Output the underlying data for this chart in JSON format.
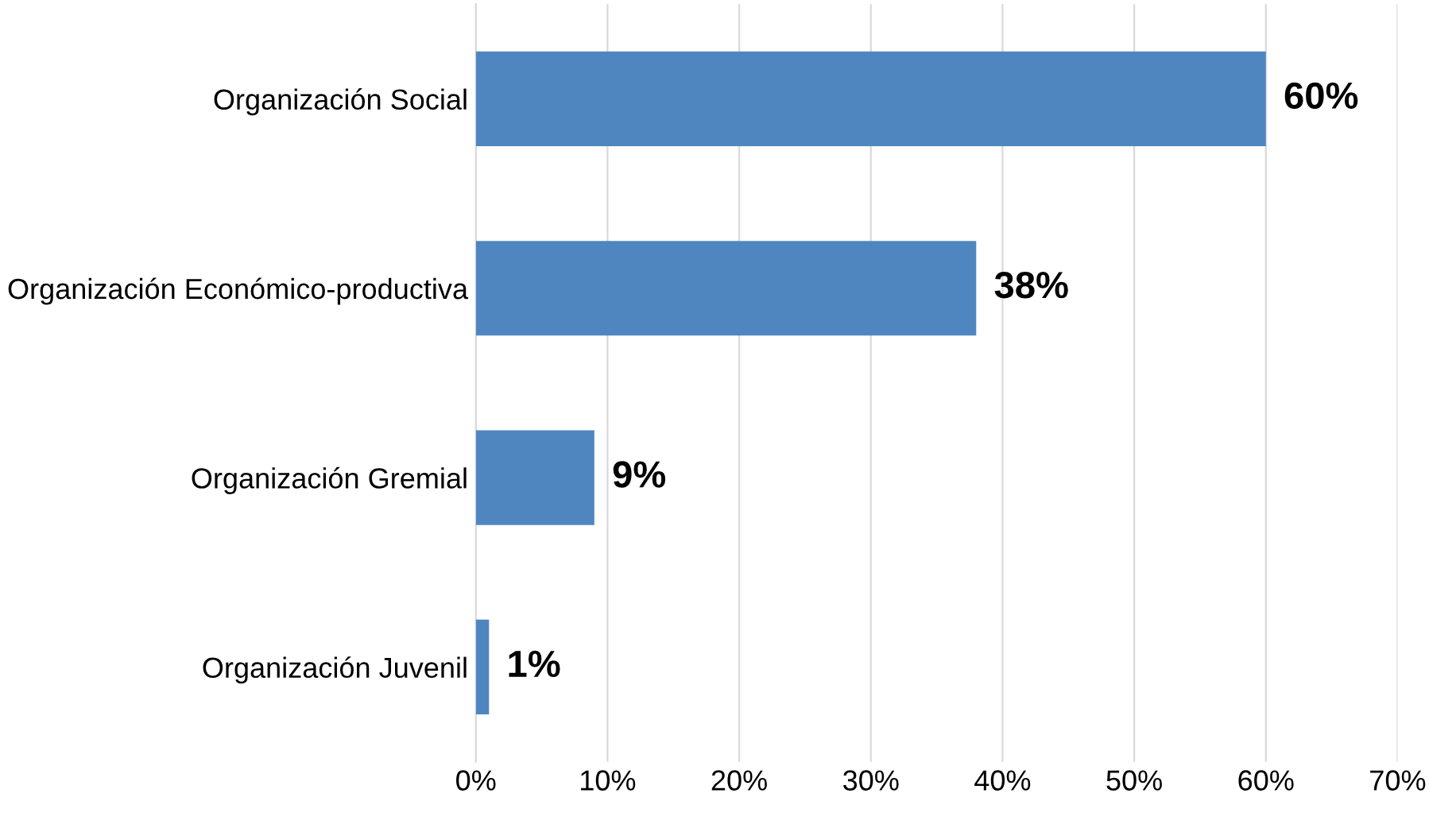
{
  "chart_data": {
    "type": "bar",
    "orientation": "horizontal",
    "categories": [
      "Organización Social",
      "Organización Económico-productiva",
      "Organización Gremial",
      "Organización Juvenil"
    ],
    "values": [
      60,
      38,
      9,
      1
    ],
    "color": "#4f86c0",
    "data_labels": true,
    "value_labels": [
      "60%",
      "38%",
      "9%",
      "1%"
    ],
    "xlim": [
      0,
      70
    ],
    "xticks": [
      {
        "value": 0,
        "label": "0%"
      },
      {
        "value": 10,
        "label": "10%"
      },
      {
        "value": 20,
        "label": "20%"
      },
      {
        "value": 30,
        "label": "30%"
      },
      {
        "value": 40,
        "label": "40%"
      },
      {
        "value": 50,
        "label": "50%"
      },
      {
        "value": 60,
        "label": "60%"
      },
      {
        "value": 70,
        "label": "70%"
      }
    ],
    "grid": "x",
    "legend": false
  }
}
